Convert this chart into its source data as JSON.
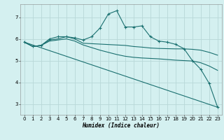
{
  "xlabel": "Humidex (Indice chaleur)",
  "bg_color": "#d4f0f0",
  "grid_color": "#b8d8d8",
  "line_color": "#1a7070",
  "xlim": [
    -0.5,
    23.5
  ],
  "ylim": [
    2.5,
    7.6
  ],
  "yticks": [
    3,
    4,
    5,
    6,
    7
  ],
  "xticks": [
    0,
    1,
    2,
    3,
    4,
    5,
    6,
    7,
    8,
    9,
    10,
    11,
    12,
    13,
    14,
    15,
    16,
    17,
    18,
    19,
    20,
    21,
    22,
    23
  ],
  "series": [
    {
      "x": [
        0,
        1,
        2,
        3,
        4,
        5,
        6,
        7,
        8,
        9,
        10,
        11,
        12,
        13,
        14,
        15,
        16,
        17,
        18,
        19,
        20,
        21,
        22,
        23
      ],
      "y": [
        5.85,
        5.65,
        5.7,
        6.0,
        6.1,
        6.1,
        6.05,
        5.95,
        6.1,
        6.5,
        7.15,
        7.3,
        6.55,
        6.55,
        6.6,
        6.1,
        5.9,
        5.85,
        5.75,
        5.55,
        5.0,
        4.6,
        3.95,
        2.85
      ],
      "marker": "+"
    },
    {
      "x": [
        0,
        1,
        2,
        3,
        4,
        5,
        6,
        7,
        8,
        9,
        10,
        11,
        12,
        13,
        14,
        15,
        16,
        17,
        18,
        19,
        20,
        21,
        22,
        23
      ],
      "y": [
        5.85,
        5.65,
        5.7,
        5.95,
        6.0,
        6.1,
        6.0,
        5.8,
        5.78,
        5.76,
        5.74,
        5.72,
        5.7,
        5.65,
        5.62,
        5.58,
        5.56,
        5.55,
        5.54,
        5.54,
        5.52,
        5.48,
        5.38,
        5.25
      ],
      "marker": null
    },
    {
      "x": [
        0,
        1,
        2,
        3,
        4,
        5,
        6,
        7,
        8,
        9,
        10,
        11,
        12,
        13,
        14,
        15,
        16,
        17,
        18,
        19,
        20,
        21,
        22,
        23
      ],
      "y": [
        5.85,
        5.65,
        5.7,
        5.9,
        5.95,
        6.0,
        5.9,
        5.72,
        5.6,
        5.48,
        5.38,
        5.28,
        5.2,
        5.15,
        5.12,
        5.1,
        5.08,
        5.05,
        5.02,
        5.0,
        4.98,
        4.9,
        4.75,
        4.55
      ],
      "marker": null
    },
    {
      "x": [
        0,
        23
      ],
      "y": [
        5.85,
        2.85
      ],
      "marker": null
    }
  ]
}
